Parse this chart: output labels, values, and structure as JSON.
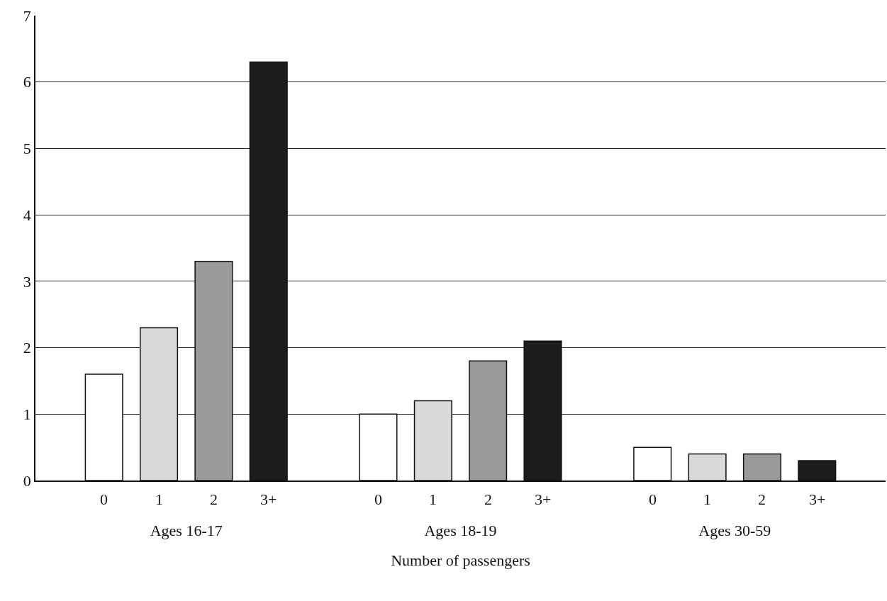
{
  "chart_data": {
    "type": "bar",
    "xlabel": "Number of passengers",
    "categories": [
      "Ages 16-17",
      "Ages 18-19",
      "Ages 30-59"
    ],
    "series": [
      {
        "name": "0",
        "color": "#ffffff",
        "values": [
          1.6,
          1.0,
          0.5
        ]
      },
      {
        "name": "1",
        "color": "#d9d9d9",
        "values": [
          2.3,
          1.2,
          0.4
        ]
      },
      {
        "name": "2",
        "color": "#9a9a9a",
        "values": [
          3.3,
          1.8,
          0.4
        ]
      },
      {
        "name": "3+",
        "color": "#1c1c1c",
        "values": [
          6.3,
          2.1,
          0.3
        ]
      }
    ],
    "ylim": [
      0,
      7
    ],
    "yticks": [
      0,
      1,
      2,
      3,
      4,
      5,
      6,
      7
    ],
    "grid": "y",
    "legend": false
  }
}
